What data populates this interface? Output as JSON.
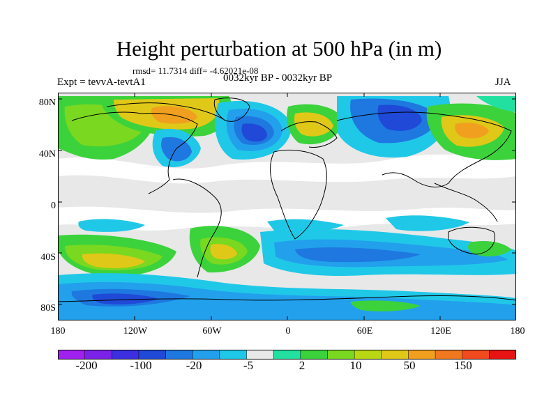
{
  "title": "Height perturbation at 500 hPa (in m)",
  "stats": "rmsd= 11.7314 diff= -4.62021e-08",
  "experiment": "Expt = tevvA-tevtA1",
  "period": "0032kyr BP - 0032kyr BP",
  "season": "JJA",
  "lat_labels": [
    "80N",
    "40N",
    "0",
    "40S",
    "80S"
  ],
  "lon_labels": [
    "180",
    "120W",
    "60W",
    "0",
    "60E",
    "120E",
    "180"
  ],
  "colorbar": {
    "colors": [
      "#a020f0",
      "#7a22e8",
      "#3b2fe0",
      "#1f49d6",
      "#1e78e0",
      "#22a0ec",
      "#20c8e8",
      "#e8e8e8",
      "#22e0a0",
      "#3cd23c",
      "#7ad820",
      "#b8d814",
      "#e0c818",
      "#f0a01e",
      "#f0781e",
      "#f04a1e",
      "#e81414"
    ],
    "labels": [
      "-200",
      "-100",
      "-20",
      "-5",
      "2",
      "10",
      "50",
      "150"
    ]
  },
  "map_colors": {
    "background": "#e8e8e8",
    "white": "#ffffff",
    "cyan": "#20c8e8",
    "lightblue": "#22a0ec",
    "blue": "#1e78e0",
    "darkblue": "#1f49d6",
    "navy": "#3b2fe0",
    "aqua": "#22e0a0",
    "green": "#3cd23c",
    "lime": "#7ad820",
    "yellowgreen": "#b8d814",
    "gold": "#e0c818",
    "orange": "#f0a01e",
    "coast": "#000000"
  }
}
